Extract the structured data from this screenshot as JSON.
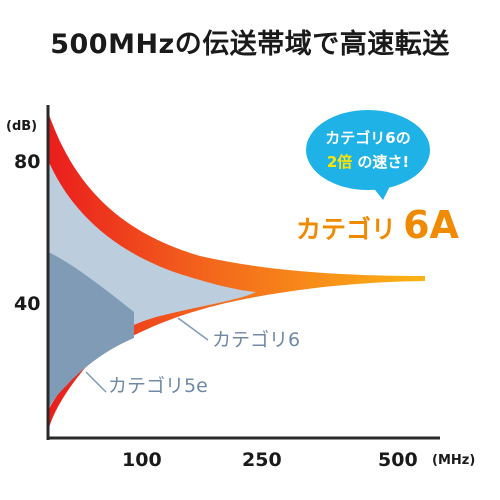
{
  "title": "500MHzの伝送帯域で高速転送",
  "callout": {
    "line1": "カテゴリ6の",
    "line2_highlight": "2倍",
    "line2_rest": "の速さ!",
    "color": "#1fb2e7"
  },
  "chart_data": {
    "type": "area",
    "ylabel": "(dB)",
    "xlabel": "(MHz)",
    "y_ticks": [
      "80",
      "40"
    ],
    "x_ticks": [
      "100",
      "250",
      "500"
    ],
    "series": [
      {
        "name": "カテゴリ6A",
        "prefix": "カテゴリ",
        "suffix": "6A",
        "max_frequency_mhz": 500,
        "color": "#f5891f"
      },
      {
        "name": "カテゴリ6",
        "max_frequency_mhz": 250,
        "color": "#bccddd"
      },
      {
        "name": "カテゴリ5e",
        "max_frequency_mhz": 100,
        "color": "#7f9bb6"
      }
    ]
  }
}
